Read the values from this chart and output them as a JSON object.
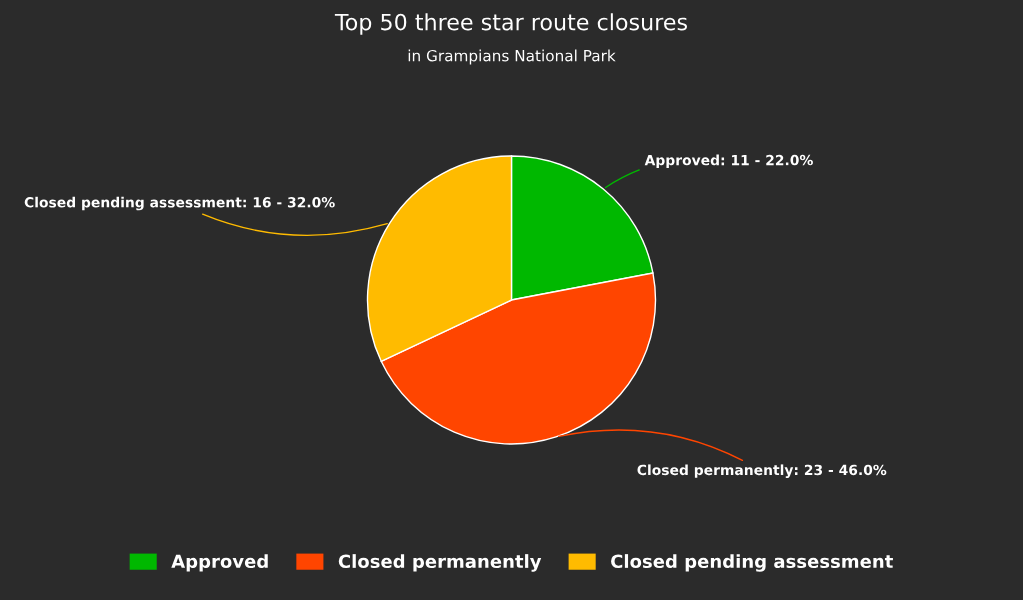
{
  "chart_data": {
    "type": "pie",
    "title": "Top 50 three star route closures",
    "subtitle": "in Grampians National Park",
    "categories": [
      "Approved",
      "Closed permanently",
      "Closed pending assessment"
    ],
    "values": [
      11,
      23,
      16
    ],
    "colors": [
      "#00b800",
      "#ff4500",
      "#ffbb00"
    ],
    "value_labels": [
      "Approved: 11 - 22.0%",
      "Closed permanently: 23 - 46.0%",
      "Closed pending assessment: 16 - 32.0%"
    ],
    "legend": "bottom"
  }
}
